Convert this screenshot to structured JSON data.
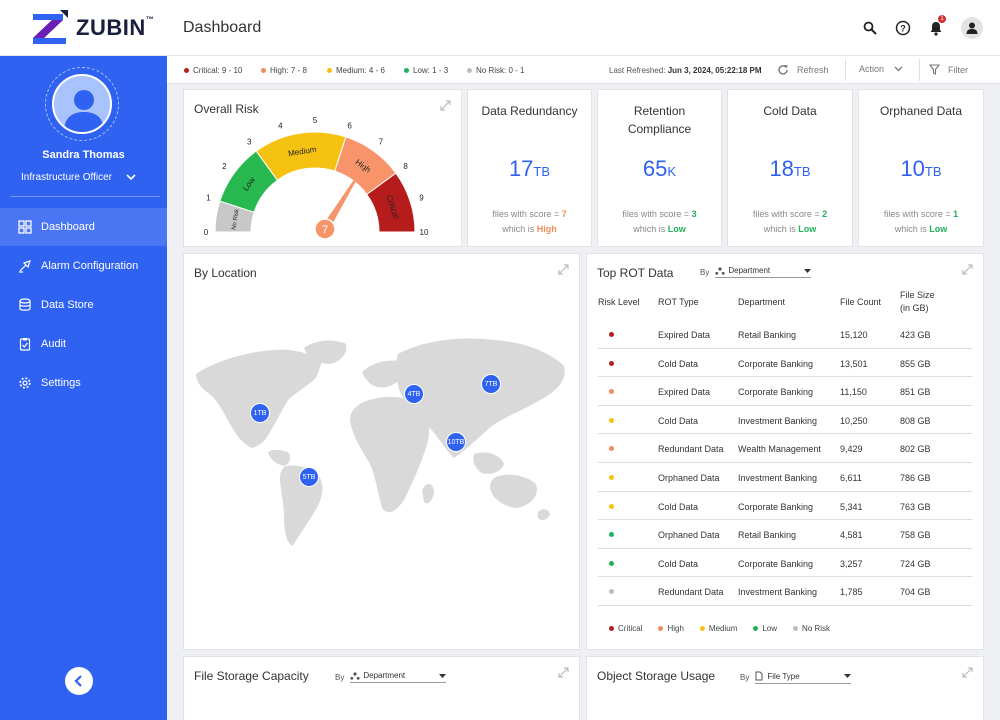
{
  "app": {
    "brand": "ZUBIN",
    "brand_tm": "™",
    "page_title": "Dashboard",
    "notification_count": "1"
  },
  "user": {
    "name": "Sandra Thomas",
    "role": "Infrastructure Officer"
  },
  "nav": [
    {
      "label": "Dashboard",
      "icon": "dashboard-icon",
      "active": true
    },
    {
      "label": "Alarm Configuration",
      "icon": "alarm-config-icon"
    },
    {
      "label": "Data Store",
      "icon": "database-icon"
    },
    {
      "label": "Audit",
      "icon": "clipboard-icon"
    },
    {
      "label": "Settings",
      "icon": "gear-icon"
    }
  ],
  "legend": [
    {
      "label": "Critical:",
      "range": "9 - 10",
      "color": "#b71c1c"
    },
    {
      "label": "High:",
      "range": "7 - 8",
      "color": "#f08d58"
    },
    {
      "label": "Medium:",
      "range": "4 - 6",
      "color": "#f5c211"
    },
    {
      "label": "Low:",
      "range": "1 - 3",
      "color": "#1fb25a"
    },
    {
      "label": "No Risk:",
      "range": "0 - 1",
      "color": "#bdbdbd"
    }
  ],
  "toolbar": {
    "refreshed_label": "Last Refreshed:",
    "refreshed_value": "Jun 3, 2024, 05:22:18 PM",
    "refresh": "Refresh",
    "action": "Action",
    "filter": "Filter"
  },
  "overall_risk": {
    "title": "Overall Risk",
    "value": 7,
    "value_text": "7",
    "ticks": [
      "0",
      "1",
      "2",
      "3",
      "4",
      "5",
      "6",
      "7",
      "8",
      "9",
      "10"
    ],
    "bands": [
      {
        "label": "No Risk",
        "from": 0,
        "to": 1,
        "color": "#c8c8c8"
      },
      {
        "label": "Low",
        "from": 1,
        "to": 3,
        "color": "#27b84f"
      },
      {
        "label": "Medium",
        "from": 3,
        "to": 6,
        "color": "#f5c211"
      },
      {
        "label": "High",
        "from": 6,
        "to": 8,
        "color": "#f7946a"
      },
      {
        "label": "Critical",
        "from": 8,
        "to": 10,
        "color": "#b71c1c"
      }
    ]
  },
  "kpis": [
    {
      "title": "Data Redundancy",
      "value": "17",
      "unit": "TB",
      "foot_text": "files with score =",
      "score": "7",
      "which_text": "which is",
      "level": "High",
      "level_class": "high"
    },
    {
      "title": "Retention Compliance",
      "value": "65",
      "unit": "K",
      "foot_text": "files with score =",
      "score": "3",
      "which_text": "which is",
      "level": "Low",
      "level_class": "low"
    },
    {
      "title": "Cold Data",
      "value": "18",
      "unit": "TB",
      "foot_text": "files with score =",
      "score": "2",
      "which_text": "which is",
      "level": "Low",
      "level_class": "low"
    },
    {
      "title": "Orphaned Data",
      "value": "10",
      "unit": "TB",
      "foot_text": "files with score =",
      "score": "1",
      "which_text": "which is",
      "level": "Low",
      "level_class": "low"
    }
  ],
  "location": {
    "title": "By Location",
    "pins": [
      {
        "label": "1TB",
        "region": "north-america"
      },
      {
        "label": "4TB",
        "region": "europe"
      },
      {
        "label": "7TB",
        "region": "russia"
      },
      {
        "label": "10TB",
        "region": "south-asia"
      },
      {
        "label": "5TB",
        "region": "south-america"
      }
    ]
  },
  "rot": {
    "title": "Top ROT Data",
    "by_label": "By",
    "by_value": "Department",
    "headers": {
      "risk": "Risk Level",
      "type": "ROT Type",
      "dept": "Department",
      "count": "File Count",
      "size_line1": "File Size",
      "size_line2": "(in GB)"
    },
    "rows": [
      {
        "color": "#b71c1c",
        "type": "Expired Data",
        "dept": "Retail Banking",
        "count": "15,120",
        "size": "423 GB"
      },
      {
        "color": "#b71c1c",
        "type": "Cold  Data",
        "dept": "Corporate Banking",
        "count": "13,501",
        "size": "855 GB"
      },
      {
        "color": "#f08d58",
        "type": "Expired Data",
        "dept": "Corporate Banking",
        "count": "11,150",
        "size": "851 GB"
      },
      {
        "color": "#f5c211",
        "type": "Cold Data",
        "dept": "Investment Banking",
        "count": "10,250",
        "size": "808 GB"
      },
      {
        "color": "#f08d58",
        "type": "Redundant Data",
        "dept": "Wealth Management",
        "count": "9,429",
        "size": "802 GB"
      },
      {
        "color": "#f5c211",
        "type": "Orphaned Data",
        "dept": "Investment Banking",
        "count": "6,611",
        "size": "786 GB"
      },
      {
        "color": "#f5c211",
        "type": "Cold Data",
        "dept": "Corporate Banking",
        "count": "5,341",
        "size": "763 GB"
      },
      {
        "color": "#1fb25a",
        "type": "Orphaned Data",
        "dept": "Retail Banking",
        "count": "4,581",
        "size": "758 GB"
      },
      {
        "color": "#1fb25a",
        "type": "Cold Data",
        "dept": "Corporate Banking",
        "count": "3,257",
        "size": "724 GB"
      },
      {
        "color": "#bdbdbd",
        "type": "Redundant Data",
        "dept": "Investment Banking",
        "count": "1,785",
        "size": "704 GB"
      }
    ],
    "legend": [
      {
        "label": "Critical",
        "color": "#b71c1c"
      },
      {
        "label": "High",
        "color": "#f08d58"
      },
      {
        "label": "Medium",
        "color": "#f5c211"
      },
      {
        "label": "Low",
        "color": "#1fb25a"
      },
      {
        "label": "No Risk",
        "color": "#bdbdbd"
      }
    ]
  },
  "file_storage": {
    "title": "File Storage Capacity",
    "by_label": "By",
    "by_value": "Department"
  },
  "object_storage": {
    "title": "Object Storage Usage",
    "by_label": "By",
    "by_value": "File Type"
  }
}
